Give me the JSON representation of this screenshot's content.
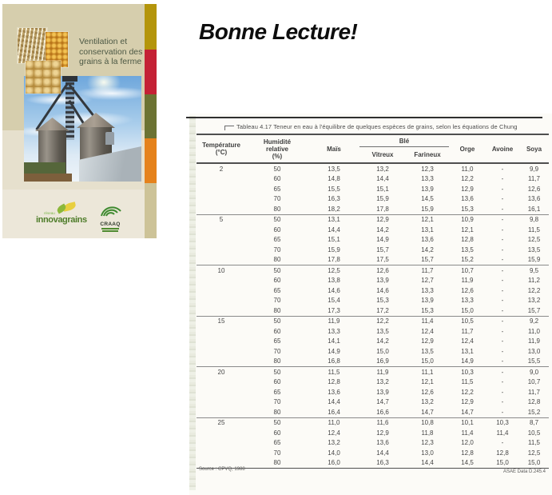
{
  "heading": {
    "text": "Bonne Lecture!"
  },
  "cover": {
    "title": "Ventilation et\nconservation des\ngrains à la ferme",
    "logos": {
      "innovagrains_small": "réseau",
      "innovagrains": "innovagrains",
      "craaq": "CRAAQ"
    },
    "colors": {
      "background": "#d6cead",
      "band": "#e6e0cd",
      "bottom": "#ece7d9",
      "title_text": "#4d5945",
      "strip_gold": "#b4950b",
      "strip_red": "#c42135",
      "strip_olive": "#6c7333",
      "strip_orange": "#e5821c",
      "strip_tan": "#cdc398"
    }
  },
  "table": {
    "caption": "Tableau 4.17 Teneur en eau à l'équilibre de quelques espèces de grains, selon les équations de Chung",
    "headers": {
      "temperature": "Température\n(°C)",
      "humidity": "Humidité\nrelative\n(%)",
      "mais": "Maïs",
      "ble": "Blé",
      "vitreux": "Vitreux",
      "farineux": "Farineux",
      "orge": "Orge",
      "avoine": "Avoine",
      "soya": "Soya"
    },
    "groups": [
      {
        "temp": "2",
        "rows": [
          [
            "50",
            "13,5",
            "13,2",
            "12,3",
            "11,0",
            "-",
            "9,9"
          ],
          [
            "60",
            "14,8",
            "14,4",
            "13,3",
            "12,2",
            "-",
            "11,7"
          ],
          [
            "65",
            "15,5",
            "15,1",
            "13,9",
            "12,9",
            "-",
            "12,6"
          ],
          [
            "70",
            "16,3",
            "15,9",
            "14,5",
            "13,6",
            "-",
            "13,6"
          ],
          [
            "80",
            "18,2",
            "17,8",
            "15,9",
            "15,3",
            "-",
            "16,1"
          ]
        ]
      },
      {
        "temp": "5",
        "rows": [
          [
            "50",
            "13,1",
            "12,9",
            "12,1",
            "10,9",
            "-",
            "9,8"
          ],
          [
            "60",
            "14,4",
            "14,2",
            "13,1",
            "12,1",
            "-",
            "11,5"
          ],
          [
            "65",
            "15,1",
            "14,9",
            "13,6",
            "12,8",
            "-",
            "12,5"
          ],
          [
            "70",
            "15,9",
            "15,7",
            "14,2",
            "13,5",
            "-",
            "13,5"
          ],
          [
            "80",
            "17,8",
            "17,5",
            "15,7",
            "15,2",
            "-",
            "15,9"
          ]
        ]
      },
      {
        "temp": "10",
        "rows": [
          [
            "50",
            "12,5",
            "12,6",
            "11,7",
            "10,7",
            "-",
            "9,5"
          ],
          [
            "60",
            "13,8",
            "13,9",
            "12,7",
            "11,9",
            "-",
            "11,2"
          ],
          [
            "65",
            "14,6",
            "14,6",
            "13,3",
            "12,6",
            "-",
            "12,2"
          ],
          [
            "70",
            "15,4",
            "15,3",
            "13,9",
            "13,3",
            "-",
            "13,2"
          ],
          [
            "80",
            "17,3",
            "17,2",
            "15,3",
            "15,0",
            "-",
            "15,7"
          ]
        ]
      },
      {
        "temp": "15",
        "rows": [
          [
            "50",
            "11,9",
            "12,2",
            "11,4",
            "10,5",
            "-",
            "9,2"
          ],
          [
            "60",
            "13,3",
            "13,5",
            "12,4",
            "11,7",
            "-",
            "11,0"
          ],
          [
            "65",
            "14,1",
            "14,2",
            "12,9",
            "12,4",
            "-",
            "11,9"
          ],
          [
            "70",
            "14,9",
            "15,0",
            "13,5",
            "13,1",
            "-",
            "13,0"
          ],
          [
            "80",
            "16,8",
            "16,9",
            "15,0",
            "14,9",
            "-",
            "15,5"
          ]
        ]
      },
      {
        "temp": "20",
        "rows": [
          [
            "50",
            "11,5",
            "11,9",
            "11,1",
            "10,3",
            "-",
            "9,0"
          ],
          [
            "60",
            "12,8",
            "13,2",
            "12,1",
            "11,5",
            "-",
            "10,7"
          ],
          [
            "65",
            "13,6",
            "13,9",
            "12,6",
            "12,2",
            "-",
            "11,7"
          ],
          [
            "70",
            "14,4",
            "14,7",
            "13,2",
            "12,9",
            "-",
            "12,8"
          ],
          [
            "80",
            "16,4",
            "16,6",
            "14,7",
            "14,7",
            "-",
            "15,2"
          ]
        ]
      },
      {
        "temp": "25",
        "rows": [
          [
            "50",
            "11,0",
            "11,6",
            "10,8",
            "10,1",
            "10,3",
            "8,7"
          ],
          [
            "60",
            "12,4",
            "12,9",
            "11,8",
            "11,4",
            "11,4",
            "10,5"
          ],
          [
            "65",
            "13,2",
            "13,6",
            "12,3",
            "12,0",
            "-",
            "11,5"
          ],
          [
            "70",
            "14,0",
            "14,4",
            "13,0",
            "12,8",
            "12,8",
            "12,5"
          ],
          [
            "80",
            "16,0",
            "16,3",
            "14,4",
            "14,5",
            "15,0",
            "15,0"
          ]
        ]
      }
    ],
    "source_left": "Source : CPVQ, 1988",
    "source_right": "ASAE Data D.245.4"
  }
}
